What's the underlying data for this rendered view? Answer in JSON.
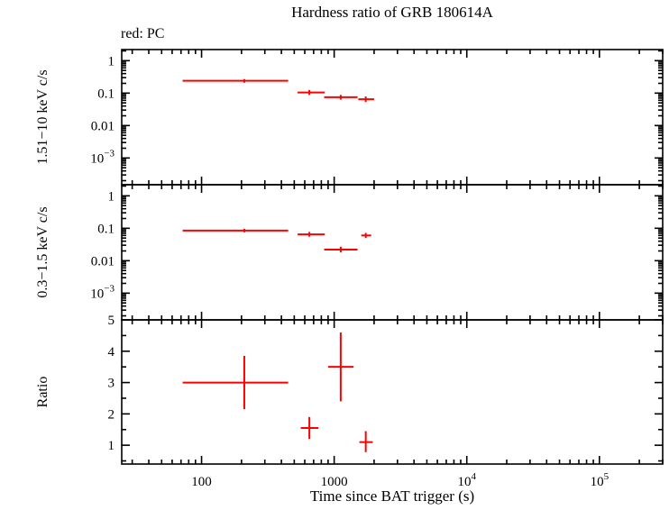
{
  "chart": {
    "title": "Hardness ratio of GRB 180614A",
    "legend": "red: PC",
    "xlabel": "Time since BAT trigger (s)"
  },
  "chart_data": {
    "type": "scatter",
    "mode": "PC",
    "point_color": "#ff0000",
    "frame_color": "#000000",
    "x_scale": "log",
    "xlim": [
      25,
      300000
    ],
    "x_major_ticks": [
      100,
      1000,
      10000,
      100000
    ],
    "x_tick_labels": [
      "100",
      "1000",
      "10^4",
      "10^5"
    ],
    "panels": [
      {
        "name": "hard-band",
        "ylabel": "1.51−10 keV c/s",
        "y_scale": "log",
        "ylim": [
          0.00015,
          2.2
        ],
        "y_major_ticks": [
          0.001,
          0.01,
          0.1,
          1
        ],
        "y_tick_labels": [
          "10^-3",
          "0.01",
          "0.1",
          "1"
        ],
        "points": [
          {
            "x": 210,
            "xlo": 72,
            "xhi": 450,
            "y": 0.24,
            "ylo": 0.21,
            "yhi": 0.27
          },
          {
            "x": 650,
            "xlo": 530,
            "xhi": 850,
            "y": 0.105,
            "ylo": 0.088,
            "yhi": 0.125
          },
          {
            "x": 1120,
            "xlo": 840,
            "xhi": 1500,
            "y": 0.075,
            "ylo": 0.063,
            "yhi": 0.088
          },
          {
            "x": 1730,
            "xlo": 1520,
            "xhi": 2000,
            "y": 0.065,
            "ylo": 0.053,
            "yhi": 0.079
          }
        ]
      },
      {
        "name": "soft-band",
        "ylabel": "0.3−1.5 keV c/s",
        "y_scale": "log",
        "ylim": [
          0.00015,
          2.2
        ],
        "y_major_ticks": [
          0.001,
          0.01,
          0.1,
          1
        ],
        "y_tick_labels": [
          "10^-3",
          "0.01",
          "0.1",
          "1"
        ],
        "points": [
          {
            "x": 210,
            "xlo": 72,
            "xhi": 450,
            "y": 0.085,
            "ylo": 0.075,
            "yhi": 0.096
          },
          {
            "x": 650,
            "xlo": 530,
            "xhi": 850,
            "y": 0.065,
            "ylo": 0.055,
            "yhi": 0.077
          },
          {
            "x": 1120,
            "xlo": 840,
            "xhi": 1500,
            "y": 0.022,
            "ylo": 0.018,
            "yhi": 0.027
          },
          {
            "x": 1730,
            "xlo": 1600,
            "xhi": 1900,
            "y": 0.06,
            "ylo": 0.05,
            "yhi": 0.072
          }
        ]
      },
      {
        "name": "ratio",
        "ylabel": "Ratio",
        "y_scale": "linear",
        "ylim": [
          0.4,
          5
        ],
        "y_major_ticks": [
          1,
          2,
          3,
          4,
          5
        ],
        "y_tick_labels": [
          "1",
          "2",
          "3",
          "4",
          "5"
        ],
        "y_minor_ticks": [
          0.5,
          1.5,
          2.5,
          3.5,
          4.5
        ],
        "points": [
          {
            "x": 210,
            "xlo": 72,
            "xhi": 450,
            "y": 3.0,
            "ylo": 2.15,
            "yhi": 3.85
          },
          {
            "x": 650,
            "xlo": 560,
            "xhi": 760,
            "y": 1.55,
            "ylo": 1.2,
            "yhi": 1.9
          },
          {
            "x": 1120,
            "xlo": 900,
            "xhi": 1400,
            "y": 3.5,
            "ylo": 2.4,
            "yhi": 4.6
          },
          {
            "x": 1730,
            "xlo": 1550,
            "xhi": 1950,
            "y": 1.1,
            "ylo": 0.78,
            "yhi": 1.45
          }
        ]
      }
    ]
  }
}
